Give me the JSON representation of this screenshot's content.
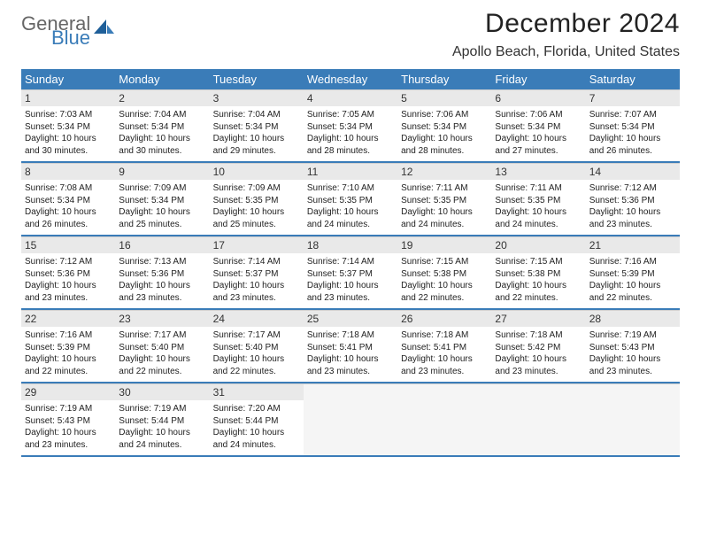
{
  "brand": {
    "word1": "General",
    "word2": "Blue",
    "accent": "#3a7cb8",
    "gray": "#666666"
  },
  "title": "December 2024",
  "location": "Apollo Beach, Florida, United States",
  "day_headers": [
    "Sunday",
    "Monday",
    "Tuesday",
    "Wednesday",
    "Thursday",
    "Friday",
    "Saturday"
  ],
  "header_bg": "#3a7cb8",
  "header_fg": "#ffffff",
  "daynum_bg": "#e9e9e9",
  "row_border": "#3a7cb8",
  "weeks": [
    [
      {
        "n": "1",
        "sr": "7:03 AM",
        "ss": "5:34 PM",
        "dl": "10 hours and 30 minutes."
      },
      {
        "n": "2",
        "sr": "7:04 AM",
        "ss": "5:34 PM",
        "dl": "10 hours and 30 minutes."
      },
      {
        "n": "3",
        "sr": "7:04 AM",
        "ss": "5:34 PM",
        "dl": "10 hours and 29 minutes."
      },
      {
        "n": "4",
        "sr": "7:05 AM",
        "ss": "5:34 PM",
        "dl": "10 hours and 28 minutes."
      },
      {
        "n": "5",
        "sr": "7:06 AM",
        "ss": "5:34 PM",
        "dl": "10 hours and 28 minutes."
      },
      {
        "n": "6",
        "sr": "7:06 AM",
        "ss": "5:34 PM",
        "dl": "10 hours and 27 minutes."
      },
      {
        "n": "7",
        "sr": "7:07 AM",
        "ss": "5:34 PM",
        "dl": "10 hours and 26 minutes."
      }
    ],
    [
      {
        "n": "8",
        "sr": "7:08 AM",
        "ss": "5:34 PM",
        "dl": "10 hours and 26 minutes."
      },
      {
        "n": "9",
        "sr": "7:09 AM",
        "ss": "5:34 PM",
        "dl": "10 hours and 25 minutes."
      },
      {
        "n": "10",
        "sr": "7:09 AM",
        "ss": "5:35 PM",
        "dl": "10 hours and 25 minutes."
      },
      {
        "n": "11",
        "sr": "7:10 AM",
        "ss": "5:35 PM",
        "dl": "10 hours and 24 minutes."
      },
      {
        "n": "12",
        "sr": "7:11 AM",
        "ss": "5:35 PM",
        "dl": "10 hours and 24 minutes."
      },
      {
        "n": "13",
        "sr": "7:11 AM",
        "ss": "5:35 PM",
        "dl": "10 hours and 24 minutes."
      },
      {
        "n": "14",
        "sr": "7:12 AM",
        "ss": "5:36 PM",
        "dl": "10 hours and 23 minutes."
      }
    ],
    [
      {
        "n": "15",
        "sr": "7:12 AM",
        "ss": "5:36 PM",
        "dl": "10 hours and 23 minutes."
      },
      {
        "n": "16",
        "sr": "7:13 AM",
        "ss": "5:36 PM",
        "dl": "10 hours and 23 minutes."
      },
      {
        "n": "17",
        "sr": "7:14 AM",
        "ss": "5:37 PM",
        "dl": "10 hours and 23 minutes."
      },
      {
        "n": "18",
        "sr": "7:14 AM",
        "ss": "5:37 PM",
        "dl": "10 hours and 23 minutes."
      },
      {
        "n": "19",
        "sr": "7:15 AM",
        "ss": "5:38 PM",
        "dl": "10 hours and 22 minutes."
      },
      {
        "n": "20",
        "sr": "7:15 AM",
        "ss": "5:38 PM",
        "dl": "10 hours and 22 minutes."
      },
      {
        "n": "21",
        "sr": "7:16 AM",
        "ss": "5:39 PM",
        "dl": "10 hours and 22 minutes."
      }
    ],
    [
      {
        "n": "22",
        "sr": "7:16 AM",
        "ss": "5:39 PM",
        "dl": "10 hours and 22 minutes."
      },
      {
        "n": "23",
        "sr": "7:17 AM",
        "ss": "5:40 PM",
        "dl": "10 hours and 22 minutes."
      },
      {
        "n": "24",
        "sr": "7:17 AM",
        "ss": "5:40 PM",
        "dl": "10 hours and 22 minutes."
      },
      {
        "n": "25",
        "sr": "7:18 AM",
        "ss": "5:41 PM",
        "dl": "10 hours and 23 minutes."
      },
      {
        "n": "26",
        "sr": "7:18 AM",
        "ss": "5:41 PM",
        "dl": "10 hours and 23 minutes."
      },
      {
        "n": "27",
        "sr": "7:18 AM",
        "ss": "5:42 PM",
        "dl": "10 hours and 23 minutes."
      },
      {
        "n": "28",
        "sr": "7:19 AM",
        "ss": "5:43 PM",
        "dl": "10 hours and 23 minutes."
      }
    ],
    [
      {
        "n": "29",
        "sr": "7:19 AM",
        "ss": "5:43 PM",
        "dl": "10 hours and 23 minutes."
      },
      {
        "n": "30",
        "sr": "7:19 AM",
        "ss": "5:44 PM",
        "dl": "10 hours and 24 minutes."
      },
      {
        "n": "31",
        "sr": "7:20 AM",
        "ss": "5:44 PM",
        "dl": "10 hours and 24 minutes."
      },
      null,
      null,
      null,
      null
    ]
  ],
  "labels": {
    "sunrise": "Sunrise:",
    "sunset": "Sunset:",
    "daylight": "Daylight:"
  }
}
